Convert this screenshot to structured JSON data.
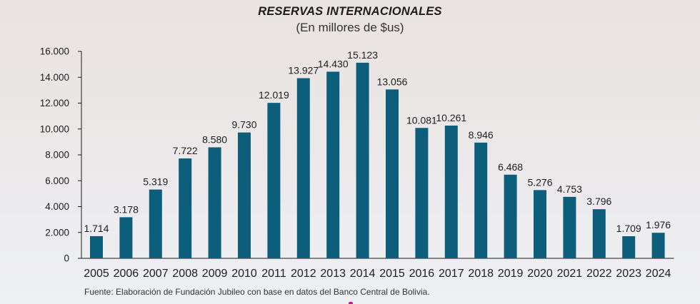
{
  "chart_data": {
    "type": "bar",
    "title": "RESERVAS INTERNACIONALES",
    "subtitle": "(En millores de $us)",
    "categories": [
      "2005",
      "2006",
      "2007",
      "2008",
      "2009",
      "2010",
      "2011",
      "2012",
      "2013",
      "2014",
      "2015",
      "2016",
      "2017",
      "2018",
      "2019",
      "2020",
      "2021",
      "2022",
      "2023",
      "2024"
    ],
    "values": [
      1714,
      3178,
      5319,
      7722,
      8580,
      9730,
      12019,
      13927,
      14430,
      15123,
      13056,
      10081,
      10261,
      8946,
      6468,
      5276,
      4753,
      3796,
      1709,
      1976
    ],
    "value_labels": [
      "1.714",
      "3.178",
      "5.319",
      "7.722",
      "8.580",
      "9.730",
      "12.019",
      "13.927",
      "14.430",
      "15.123",
      "13.056",
      "10.081",
      "10.261",
      "8.946",
      "6.468",
      "5.276",
      "4.753",
      "3.796",
      "1.709",
      "1.976"
    ],
    "yticks": [
      0,
      2000,
      4000,
      6000,
      8000,
      10000,
      12000,
      14000,
      16000
    ],
    "ytick_labels": [
      "0",
      "2.000",
      "4.000",
      "6.000",
      "8.000",
      "10.000",
      "12.000",
      "14.000",
      "16.000"
    ],
    "ylim": [
      0,
      16000
    ],
    "xlabel": "",
    "ylabel": "",
    "grid": false,
    "legend": "none",
    "bar_color": "#0c5e7a",
    "source": "Fuente: Elaboración de Fundación Jubileo con base en datos del Banco Central de Bolivia."
  }
}
